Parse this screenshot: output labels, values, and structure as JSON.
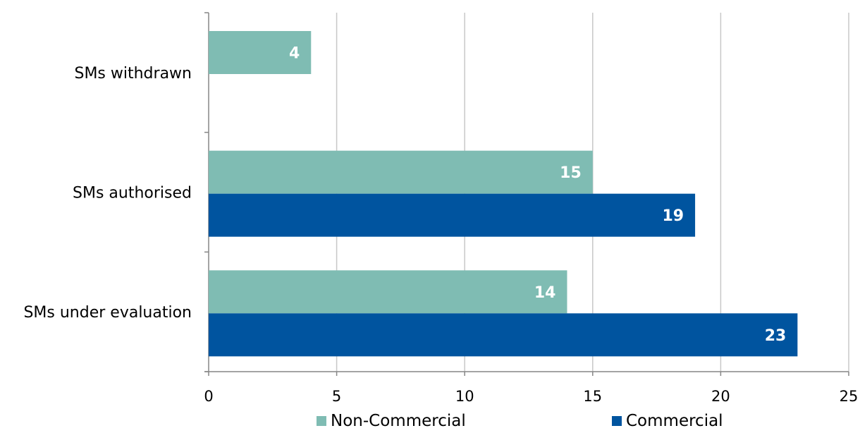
{
  "chart_data": {
    "type": "bar",
    "orientation": "horizontal",
    "categories": [
      "SMs withdrawn",
      "SMs authorised",
      "SMs under evaluation"
    ],
    "series": [
      {
        "name": "Non-Commercial",
        "color": "#7fbcb3",
        "values": [
          4,
          15,
          14
        ]
      },
      {
        "name": "Commercial",
        "color": "#00549f",
        "values": [
          null,
          19,
          23
        ]
      }
    ],
    "xlim": [
      0,
      25
    ],
    "x_ticks": [
      "0",
      "5",
      "10",
      "15",
      "20",
      "25"
    ],
    "grid": "vertical",
    "legend_position": "bottom",
    "data_labels": true
  }
}
